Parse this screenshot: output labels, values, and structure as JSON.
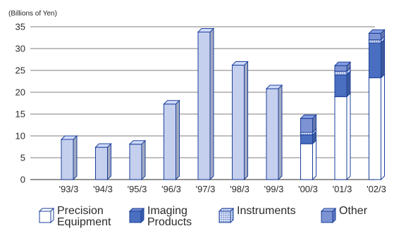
{
  "chart_data": {
    "type": "bar",
    "stacked": true,
    "three_d": true,
    "unit_label": "(Billions of Yen)",
    "categories": [
      "'93/3",
      "'94/3",
      "'95/3",
      "'96/3",
      "'97/3",
      "'98/3",
      "'99/3",
      "'00/3",
      "'01/3",
      "'02/3"
    ],
    "ylim": [
      0,
      35
    ],
    "yticks": [
      0,
      5,
      10,
      15,
      20,
      25,
      30,
      35
    ],
    "grid": true,
    "legend_position": "bottom",
    "series": [
      {
        "name": "Precision\nEquipment",
        "key": "precision",
        "color": "#ffffff",
        "pattern": "none",
        "values": [
          0,
          0,
          0,
          0,
          0,
          0,
          0,
          8.2,
          19.0,
          23.3
        ]
      },
      {
        "name": "Imaging\nProducts",
        "key": "imaging",
        "color": "#4a6fc0",
        "pattern": "none",
        "values": [
          0,
          0,
          0,
          0,
          0,
          0,
          0,
          2.0,
          5.0,
          8.0
        ]
      },
      {
        "name": "Instruments",
        "key": "instruments",
        "color": "#b3c0e6",
        "pattern": "dots",
        "values": [
          0,
          0,
          0,
          0,
          0,
          0,
          0,
          0.6,
          0.8,
          0.7
        ]
      },
      {
        "name": "Other",
        "key": "other",
        "color": "#7d93d3",
        "pattern": "none",
        "values": [
          9.2,
          7.4,
          8.1,
          17.3,
          33.8,
          26.2,
          20.8,
          3.2,
          1.3,
          1.5
        ]
      }
    ],
    "colors": {
      "legacy_bar": "#c5cfee",
      "outline": "#1a3f9a",
      "grid": "#555555"
    }
  }
}
